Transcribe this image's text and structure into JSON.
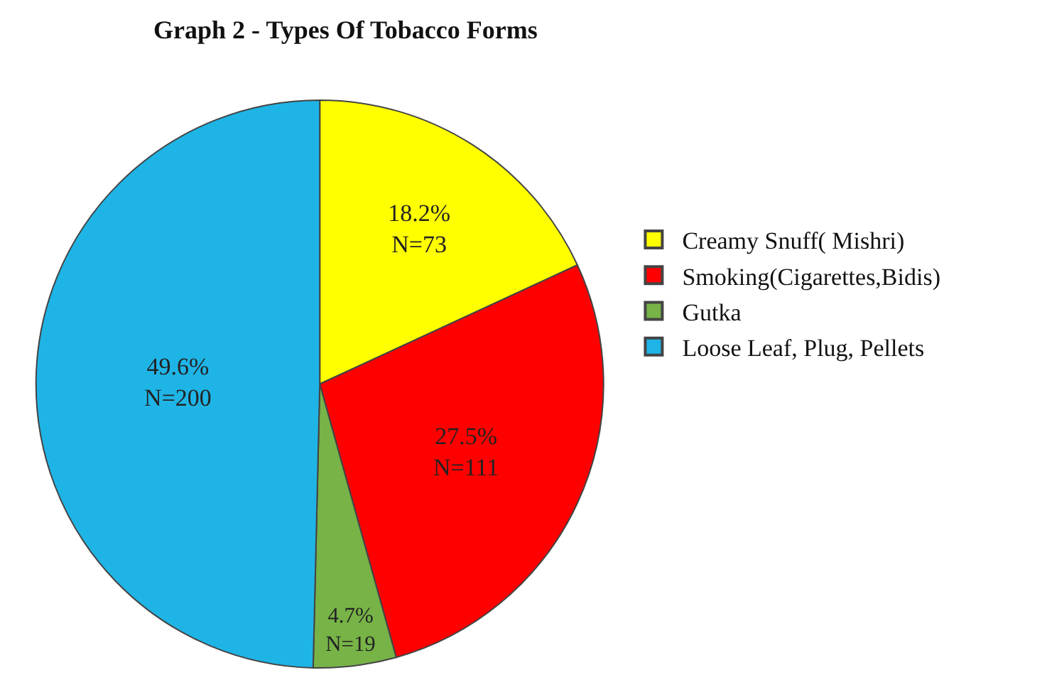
{
  "chart_data": {
    "type": "pie",
    "title": "Graph 2 - Types Of Tobacco Forms",
    "categories": [
      "Creamy Snuff( Mishri)",
      "Smoking(Cigarettes,Bidis)",
      "Gutka",
      "Loose Leaf, Plug, Pellets"
    ],
    "values": [
      73,
      111,
      19,
      200
    ],
    "value_labels": [
      "18.2%\nN=73",
      "27.5%\nN=111",
      "4.7%\nN=19",
      "49.6%\nN=200"
    ],
    "colors": [
      "#ffff00",
      "#ff0000",
      "#77b347",
      "#1fb4e6"
    ],
    "legend": "right"
  }
}
